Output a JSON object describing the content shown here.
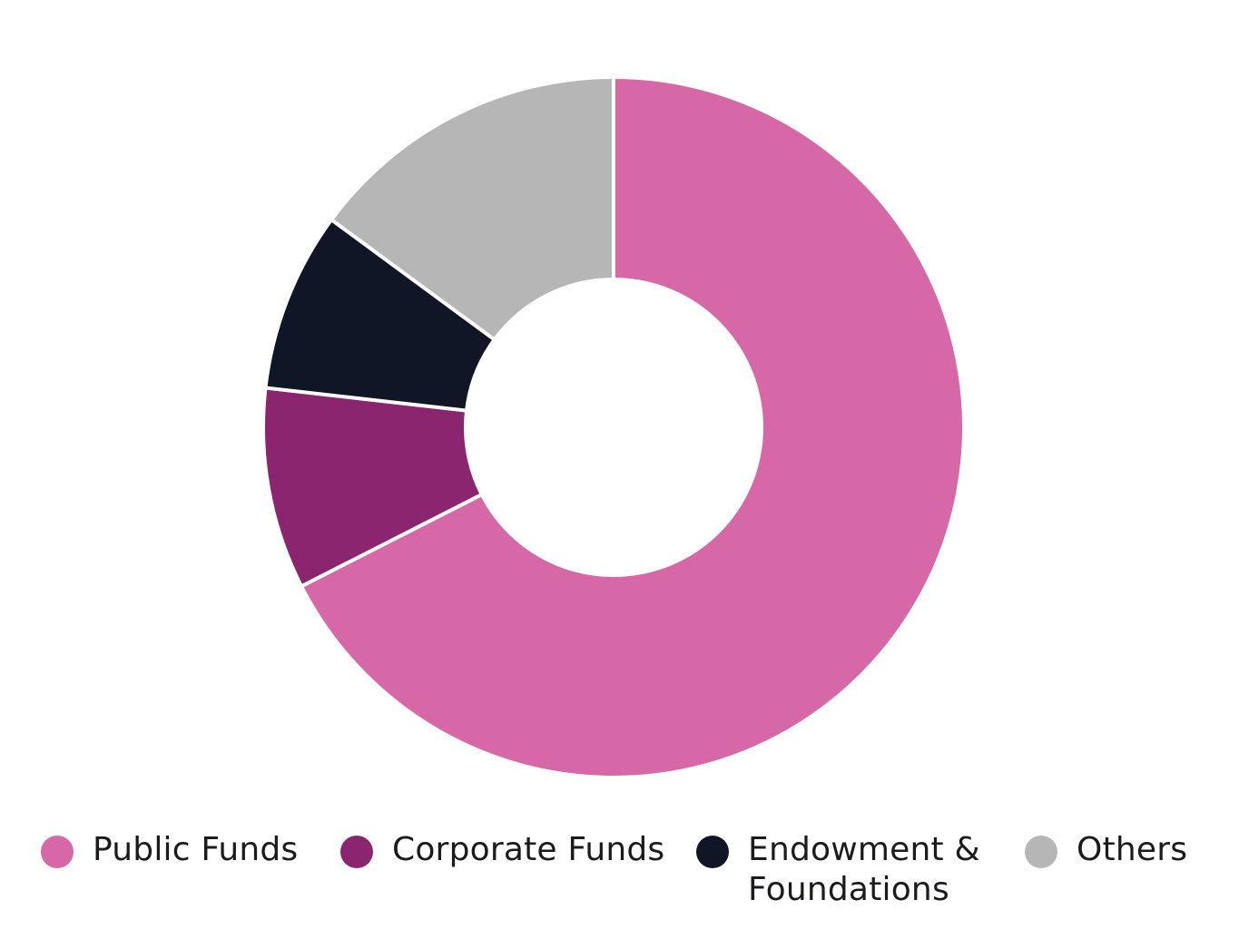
{
  "chart_data": {
    "type": "pie",
    "donut": true,
    "categories": [
      "Public Funds",
      "Corporate Funds",
      "Endowment & Foundations",
      "Others"
    ],
    "values": [
      67.5,
      9.3,
      8.3,
      14.9
    ],
    "colors": [
      "#D668A8",
      "#8C2570",
      "#101626",
      "#B5B6B5"
    ],
    "start_angle_deg": 0,
    "direction": "clockwise",
    "title": "",
    "legend_position": "bottom"
  },
  "legend": [
    {
      "label": "Public Funds",
      "color": "#D668A8"
    },
    {
      "label": "Corporate Funds",
      "color": "#8C2570"
    },
    {
      "label": "Endowment & Foundations",
      "color": "#101626"
    },
    {
      "label": "Others",
      "color": "#B5B6B5"
    }
  ]
}
